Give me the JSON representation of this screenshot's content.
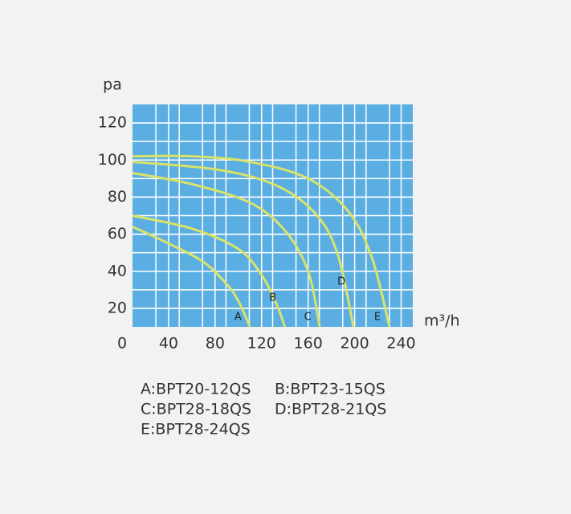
{
  "chart_data": {
    "type": "line",
    "ylabel": "pa",
    "xlabel": "m³/h",
    "xlim": [
      0,
      250
    ],
    "ylim": [
      10,
      130
    ],
    "xticks": [
      0,
      40,
      80,
      120,
      160,
      200,
      240
    ],
    "yticks": [
      20,
      40,
      60,
      80,
      100,
      120
    ],
    "grid": true,
    "background": "#5aaee2",
    "grid_color": "#ffffff",
    "series": [
      {
        "name": "A",
        "color": "#d9e36a",
        "x": [
          9,
          40,
          70,
          90,
          100,
          110
        ],
        "values": [
          64,
          55,
          45,
          33,
          24,
          10
        ]
      },
      {
        "name": "B",
        "color": "#d9e36a",
        "x": [
          9,
          60,
          100,
          120,
          133,
          140
        ],
        "values": [
          70,
          63,
          52,
          38,
          22,
          10
        ]
      },
      {
        "name": "C",
        "color": "#d9e36a",
        "x": [
          9,
          60,
          110,
          140,
          160,
          170
        ],
        "values": [
          93,
          87,
          77,
          62,
          40,
          10
        ]
      },
      {
        "name": "D",
        "color": "#d9e36a",
        "x": [
          9,
          80,
          130,
          165,
          185,
          199
        ],
        "values": [
          99,
          95,
          87,
          72,
          50,
          10
        ]
      },
      {
        "name": "E",
        "color": "#d9e36a",
        "x": [
          9,
          60,
          110,
          160,
          195,
          215,
          230
        ],
        "values": [
          102,
          102,
          99,
          90,
          72,
          47,
          10
        ]
      }
    ],
    "legend": [
      "A:BPT20-12QS",
      "B:BPT23-15QS",
      "C:BPT28-18QS",
      "D:BPT28-21QS",
      "E:BPT28-24QS"
    ]
  }
}
